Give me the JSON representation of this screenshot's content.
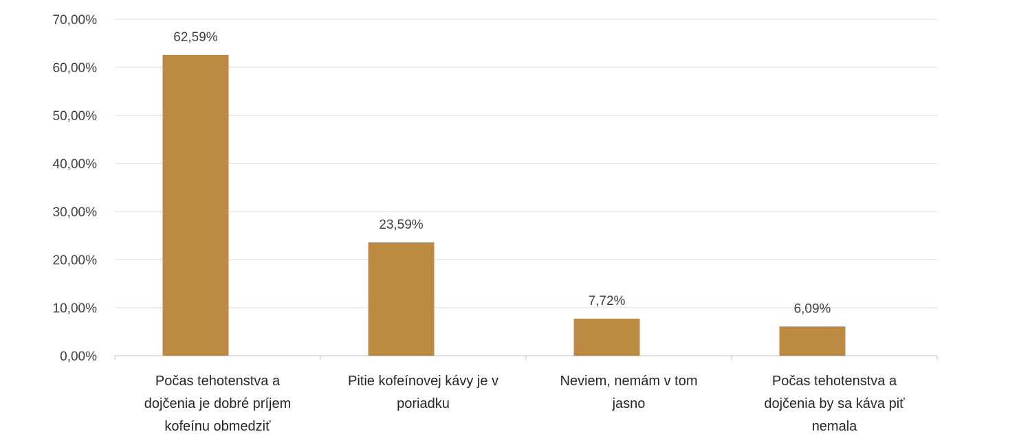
{
  "chart_data": {
    "type": "bar",
    "title": "",
    "xlabel": "",
    "ylabel": "",
    "ylim": [
      0,
      70
    ],
    "yticks": [
      "0,00%",
      "10,00%",
      "20,00%",
      "30,00%",
      "40,00%",
      "50,00%",
      "60,00%",
      "70,00%"
    ],
    "grid": true,
    "legend": "none",
    "bar_color": "#BD8A43",
    "categories": [
      [
        "Počas tehotenstva a",
        "dojčenia je dobré príjem",
        "kofeínu obmedziť"
      ],
      [
        "Pitie kofeínovej kávy je v",
        "poriadku"
      ],
      [
        "Neviem, nemám v tom",
        "jasno"
      ],
      [
        "Počas tehotenstva a",
        "dojčenia by sa káva piť",
        "nemala"
      ]
    ],
    "values": [
      62.59,
      23.59,
      7.72,
      6.09
    ],
    "data_labels": [
      "62,59%",
      "23,59%",
      "7,72%",
      "6,09%"
    ]
  }
}
